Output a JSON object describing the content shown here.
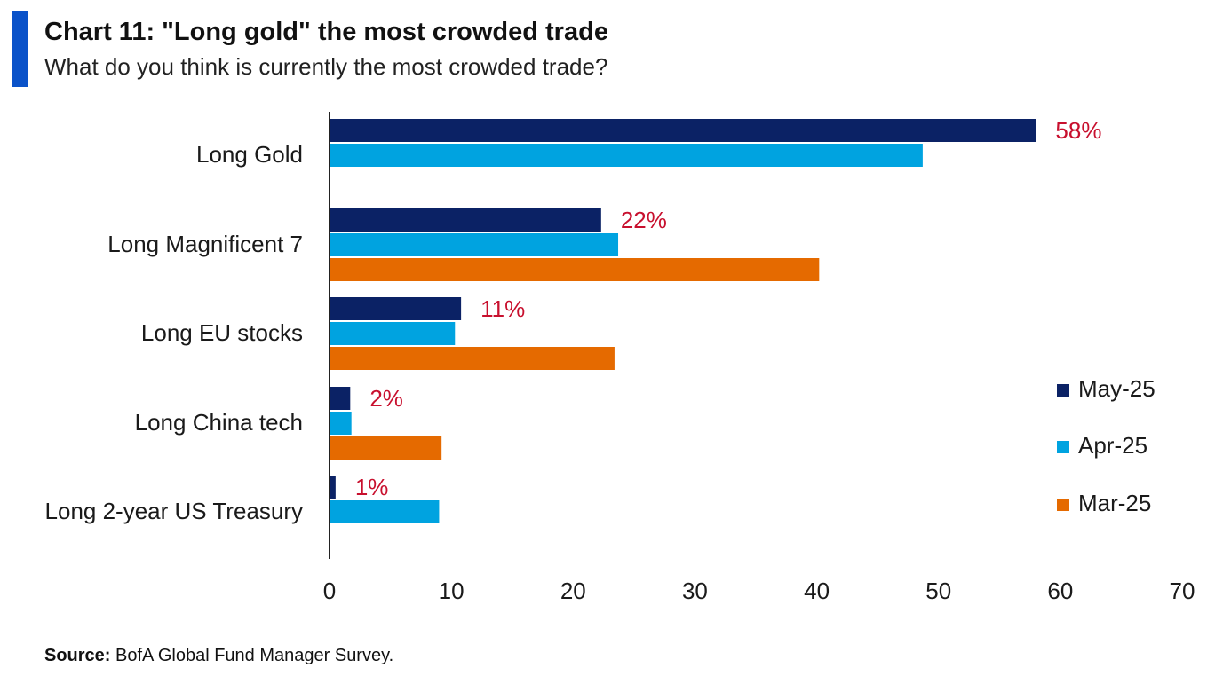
{
  "header": {
    "title": "Chart 11: \"Long gold\" the most crowded trade",
    "subtitle": "What do you think is currently the most crowded trade?"
  },
  "footer": {
    "source_label": "Source:",
    "source_text": "BofA Global Fund Manager Survey."
  },
  "colors": {
    "accent": "#0a52c9",
    "may": "#0b2265",
    "apr": "#00a3e0",
    "mar": "#e56a00",
    "label": "#c8102e"
  },
  "chart_data": {
    "type": "bar",
    "orientation": "horizontal",
    "categories": [
      "Long Gold",
      "Long Magnificent 7",
      "Long EU stocks",
      "Long China tech",
      "Long 2-year US Treasury"
    ],
    "series": [
      {
        "name": "May-25",
        "color": "#0b2265",
        "values": [
          58,
          22.3,
          10.8,
          1.7,
          0.5
        ]
      },
      {
        "name": "Apr-25",
        "color": "#00a3e0",
        "values": [
          48.7,
          23.7,
          10.3,
          1.8,
          9
        ]
      },
      {
        "name": "Mar-25",
        "color": "#e56a00",
        "values": [
          null,
          40.2,
          23.4,
          9.2,
          null
        ]
      }
    ],
    "data_labels": [
      "58%",
      "22%",
      "11%",
      "2%",
      "1%"
    ],
    "xlim": [
      0,
      70
    ],
    "xticks": [
      0,
      10,
      20,
      30,
      40,
      50,
      60,
      70
    ],
    "xlabel": "",
    "ylabel": "",
    "grid": false,
    "legend_position": "right"
  }
}
